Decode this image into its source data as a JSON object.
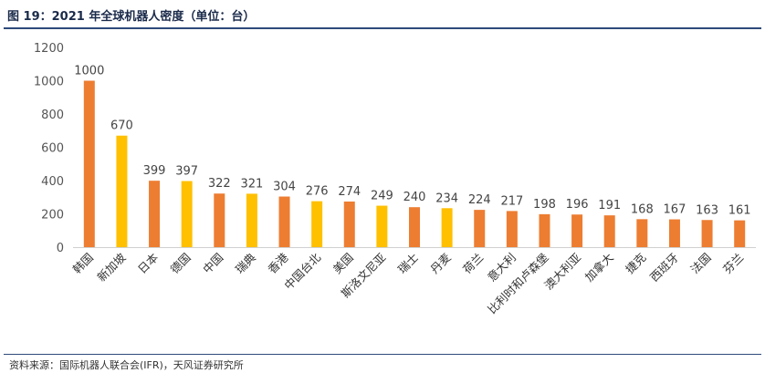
{
  "title": "图 19：2021 年全球机器人密度（单位：台）",
  "source": "资料来源：国际机器人联合会(IFR)，天风证券研究所",
  "chart_data": {
    "type": "bar",
    "title": "图 19：2021 年全球机器人密度（单位：台）",
    "xlabel": "",
    "ylabel": "",
    "ylim": [
      0,
      1200
    ],
    "yticks": [
      0,
      200,
      400,
      600,
      800,
      1000,
      1200
    ],
    "grid": false,
    "categories": [
      "韩国",
      "新加坡",
      "日本",
      "德国",
      "中国",
      "瑞典",
      "香港",
      "中国台北",
      "美国",
      "斯洛文尼亚",
      "瑞士",
      "丹麦",
      "荷兰",
      "意大利",
      "比利时和卢森堡",
      "澳大利亚",
      "加拿大",
      "捷克",
      "西班牙",
      "法国",
      "芬兰"
    ],
    "values": [
      1000,
      670,
      399,
      397,
      322,
      321,
      304,
      276,
      274,
      249,
      240,
      234,
      224,
      217,
      198,
      196,
      191,
      168,
      167,
      163,
      161
    ],
    "colors": [
      "#ED7D31",
      "#FFC000",
      "#ED7D31",
      "#FFC000",
      "#ED7D31",
      "#FFC000",
      "#ED7D31",
      "#FFC000",
      "#ED7D31",
      "#FFC000",
      "#ED7D31",
      "#FFC000",
      "#ED7D31",
      "#ED7D31",
      "#ED7D31",
      "#ED7D31",
      "#ED7D31",
      "#ED7D31",
      "#ED7D31",
      "#ED7D31",
      "#ED7D31"
    ]
  }
}
